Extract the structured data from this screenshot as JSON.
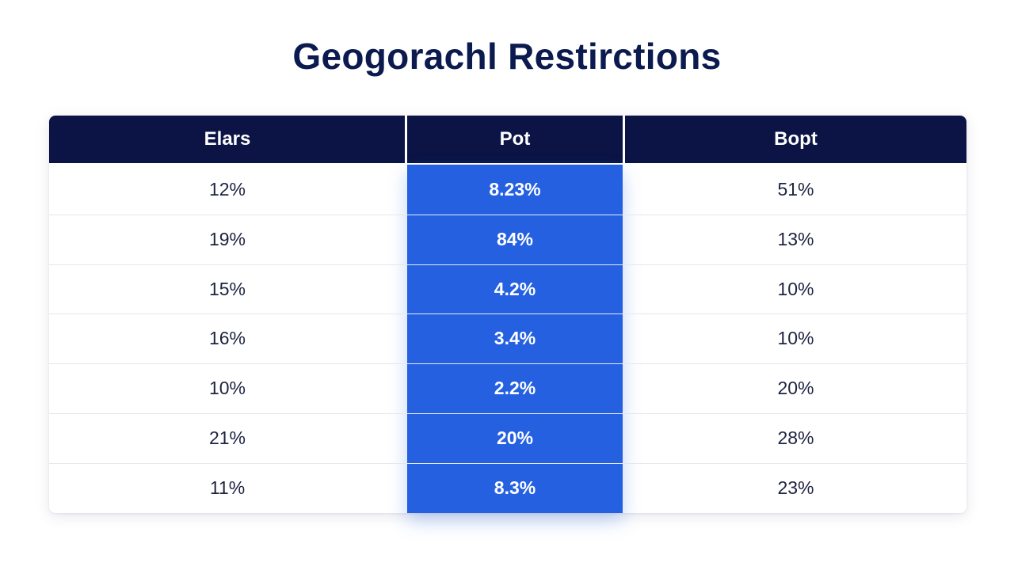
{
  "title": "Geogorachl Restirctions",
  "chart_data": {
    "type": "table",
    "title": "Geogorachl Restirctions",
    "columns": [
      "Elars",
      "Pot",
      "Bopt"
    ],
    "highlighted_column": "Pot",
    "rows": [
      [
        "12%",
        "8.23%",
        "51%"
      ],
      [
        "19%",
        "84%",
        "13%"
      ],
      [
        "15%",
        "4.2%",
        "10%"
      ],
      [
        "16%",
        "3.4%",
        "10%"
      ],
      [
        "10%",
        "2.2%",
        "20%"
      ],
      [
        "21%",
        "20%",
        "28%"
      ],
      [
        "11%",
        "8.3%",
        "23%"
      ]
    ]
  },
  "colors": {
    "title": "#0b1a4f",
    "header_bg": "#0b1445",
    "highlight": "#2460e0",
    "text": "#1d2340"
  }
}
